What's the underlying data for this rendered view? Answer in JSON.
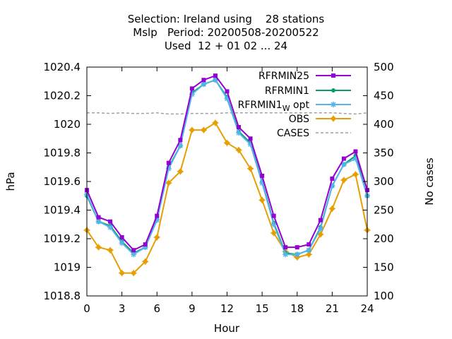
{
  "chart_data": {
    "type": "line",
    "title_lines": [
      "Selection: Ireland using    28 stations",
      "Mslp   Period: 20200508-20200522",
      "Used  12 + 01 02 ... 24"
    ],
    "xlabel": "Hour",
    "ylabel": "hPa",
    "y2label": "No cases",
    "xlim": [
      0,
      24
    ],
    "ylim": [
      1018.8,
      1020.4
    ],
    "y2lim": [
      100,
      500
    ],
    "xticks": [
      0,
      3,
      6,
      9,
      12,
      15,
      18,
      21,
      24
    ],
    "yticks": [
      1018.8,
      1019,
      1019.2,
      1019.4,
      1019.6,
      1019.8,
      1020,
      1020.2,
      1020.4
    ],
    "y2ticks": [
      100,
      150,
      200,
      250,
      300,
      350,
      400,
      450,
      500
    ],
    "grid": false,
    "legend_position": "top-right",
    "x": [
      0,
      1,
      2,
      3,
      4,
      5,
      6,
      7,
      8,
      9,
      10,
      11,
      12,
      13,
      14,
      15,
      16,
      17,
      18,
      19,
      20,
      21,
      22,
      23,
      24
    ],
    "series": [
      {
        "name": "RFRMIN25",
        "color": "#9400d3",
        "marker": "square",
        "axis": "y",
        "values": [
          1019.54,
          1019.35,
          1019.32,
          1019.21,
          1019.12,
          1019.16,
          1019.36,
          1019.73,
          1019.89,
          1020.25,
          1020.31,
          1020.34,
          1020.23,
          1019.98,
          1019.9,
          1019.64,
          1019.36,
          1019.14,
          1019.14,
          1019.16,
          1019.33,
          1019.62,
          1019.76,
          1019.81,
          1019.54
        ]
      },
      {
        "name": "RFRMIN1",
        "color": "#009e73",
        "marker": "circle",
        "axis": "y",
        "values": [
          1019.5,
          1019.32,
          1019.29,
          1019.18,
          1019.1,
          1019.14,
          1019.34,
          1019.7,
          1019.85,
          1020.22,
          1020.28,
          1020.31,
          1020.19,
          1019.95,
          1019.87,
          1019.6,
          1019.31,
          1019.1,
          1019.09,
          1019.12,
          1019.28,
          1019.57,
          1019.72,
          1019.78,
          1019.5
        ]
      },
      {
        "name": "RFRMIN1",
        "name_subscript": "W",
        "name_suffix": " opt",
        "color": "#56b4e9",
        "marker": "asterisk",
        "axis": "y",
        "values": [
          1019.51,
          1019.32,
          1019.28,
          1019.17,
          1019.09,
          1019.14,
          1019.33,
          1019.69,
          1019.85,
          1020.21,
          1020.28,
          1020.31,
          1020.18,
          1019.94,
          1019.86,
          1019.59,
          1019.3,
          1019.09,
          1019.09,
          1019.12,
          1019.27,
          1019.57,
          1019.72,
          1019.76,
          1019.5
        ]
      },
      {
        "name": "OBS",
        "color": "#e69f00",
        "marker": "plus",
        "axis": "y",
        "values": [
          1019.26,
          1019.14,
          1019.12,
          1018.96,
          1018.96,
          1019.04,
          1019.21,
          1019.59,
          1019.67,
          1019.96,
          1019.96,
          1020.01,
          1019.87,
          1019.82,
          1019.69,
          1019.47,
          1019.24,
          1019.11,
          1019.07,
          1019.09,
          1019.23,
          1019.41,
          1019.61,
          1019.65,
          1019.26
        ]
      },
      {
        "name": "CASES",
        "color": "#a0a0a0",
        "marker": "none",
        "dash": true,
        "axis": "y2",
        "values": [
          420,
          420,
          419,
          420,
          419,
          419,
          420,
          418,
          418,
          419,
          419,
          419,
          420,
          420,
          420,
          420,
          420,
          420,
          420,
          420,
          420,
          420,
          419,
          418,
          420
        ]
      }
    ]
  }
}
